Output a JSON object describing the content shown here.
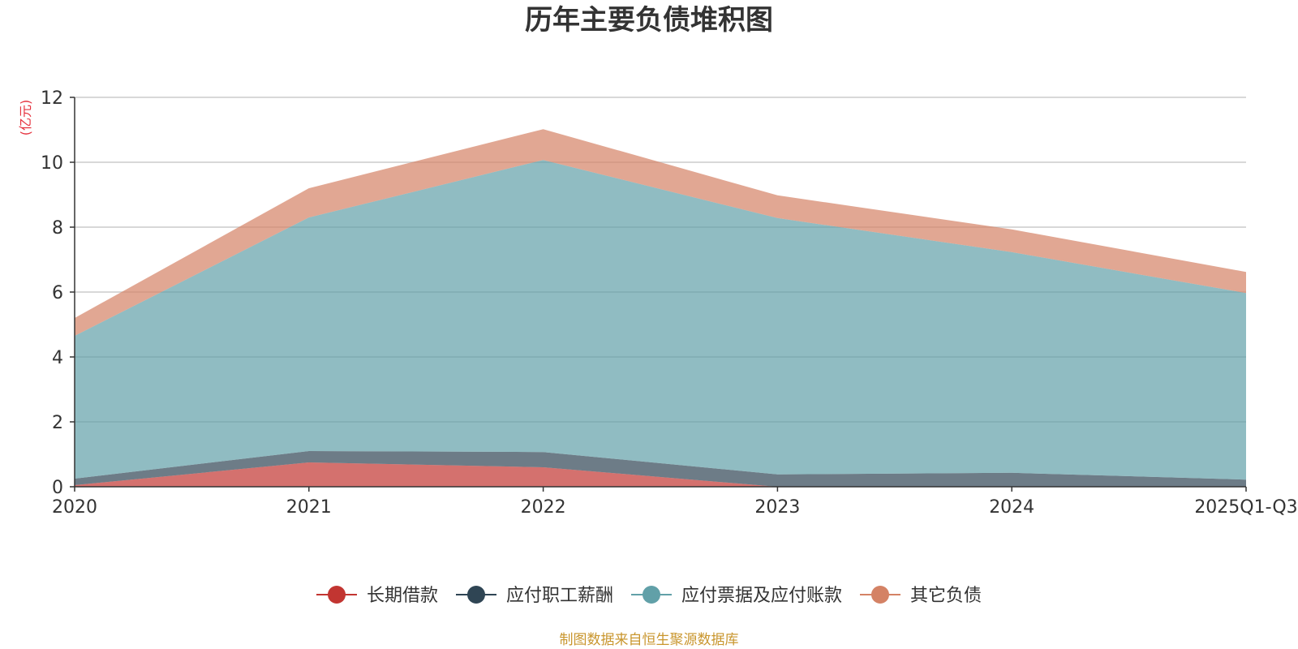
{
  "chart_data": {
    "type": "area",
    "stacked": true,
    "title": "历年主要负债堆积图",
    "ylabel": "(亿元)",
    "xlabel": "",
    "categories": [
      "2020",
      "2021",
      "2022",
      "2023",
      "2024",
      "2025Q1-Q3"
    ],
    "ylim": [
      0,
      12
    ],
    "yticks": [
      0,
      2,
      4,
      6,
      8,
      10,
      12
    ],
    "grid": true,
    "legend_position": "bottom-center",
    "series": [
      {
        "name": "长期借款",
        "color": "#c23531",
        "values": [
          0.05,
          0.75,
          0.6,
          0.0,
          0.0,
          0.0
        ]
      },
      {
        "name": "应付职工薪酬",
        "color": "#2f4554",
        "values": [
          0.2,
          0.35,
          0.47,
          0.38,
          0.43,
          0.22
        ]
      },
      {
        "name": "应付票据及应付账款",
        "color": "#61a0a8",
        "values": [
          4.4,
          7.2,
          9.0,
          7.9,
          6.8,
          5.75
        ]
      },
      {
        "name": "其它负债",
        "color": "#d48265",
        "values": [
          0.55,
          0.9,
          0.95,
          0.7,
          0.7,
          0.65
        ]
      }
    ],
    "source_note": "制图数据来自恒生聚源数据库"
  }
}
